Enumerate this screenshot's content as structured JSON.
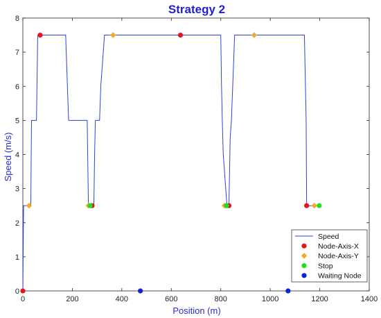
{
  "colors": {
    "title": "#1f1fd6",
    "axis_label": "#2a2ad0",
    "speed_line": "#2d3fe0",
    "node_x": "#e8131c",
    "node_y": "#f0a92a",
    "stop": "#22dd22",
    "waiting": "#1020d8",
    "axis": "#222222"
  },
  "chart_data": {
    "type": "line",
    "title": "Strategy 2",
    "xlabel": "Position (m)",
    "ylabel": "Speed (m/s)",
    "xlim": [
      0,
      1400
    ],
    "ylim": [
      0,
      8
    ],
    "xticks": [
      0,
      200,
      400,
      600,
      800,
      1000,
      1200,
      1400
    ],
    "yticks": [
      0,
      1,
      2,
      3,
      4,
      5,
      6,
      7,
      8
    ],
    "grid": false,
    "legend_position": "bottom-right",
    "series": [
      {
        "name": "Speed",
        "kind": "line",
        "x": [
          0,
          3,
          22,
          25,
          32,
          35,
          55,
          60,
          75,
          173,
          180,
          185,
          260,
          262,
          265,
          268,
          287,
          290,
          293,
          310,
          315,
          330,
          335,
          800,
          803,
          806,
          810,
          825,
          830,
          833,
          838,
          843,
          856,
          864,
          1138,
          1145,
          1147,
          1200
        ],
        "y": [
          0,
          2.5,
          2.5,
          2.5,
          2.5,
          5,
          5,
          7.5,
          7.5,
          7.5,
          6,
          5,
          5,
          4,
          2.5,
          2.5,
          2.5,
          4,
          5,
          5,
          6,
          7.5,
          7.5,
          7.5,
          6,
          5,
          4,
          2.5,
          2.5,
          2.5,
          4.5,
          5,
          7.5,
          7.5,
          7.5,
          5,
          2.5,
          2.5
        ]
      },
      {
        "name": "Node-Axis-X",
        "kind": "scatter",
        "marker": "circle",
        "points": [
          [
            0,
            0
          ],
          [
            70,
            7.5
          ],
          [
            280,
            2.5
          ],
          [
            637,
            7.5
          ],
          [
            833,
            2.5
          ],
          [
            1147,
            2.5
          ]
        ]
      },
      {
        "name": "Node-Axis-Y",
        "kind": "scatter",
        "marker": "diamond",
        "points": [
          [
            25,
            2.5
          ],
          [
            365,
            7.5
          ],
          [
            265,
            2.5
          ],
          [
            815,
            2.5
          ],
          [
            935,
            7.5
          ],
          [
            1178,
            2.5
          ]
        ]
      },
      {
        "name": "Stop",
        "kind": "scatter",
        "marker": "circle",
        "points": [
          [
            272,
            2.5
          ],
          [
            823,
            2.5
          ],
          [
            1198,
            2.5
          ]
        ]
      },
      {
        "name": "Waiting Node",
        "kind": "scatter",
        "marker": "circle",
        "points": [
          [
            475,
            0
          ],
          [
            1072,
            0
          ]
        ]
      }
    ]
  }
}
